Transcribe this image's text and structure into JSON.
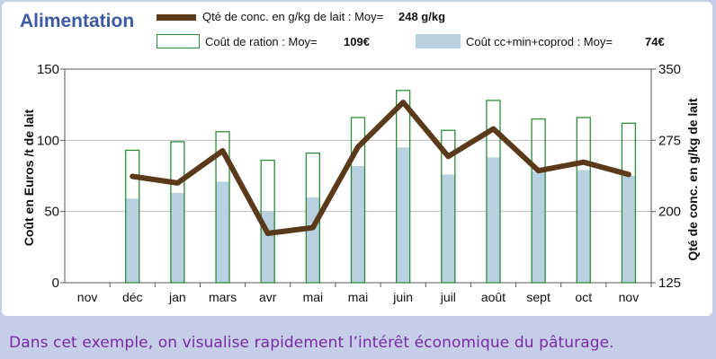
{
  "title": "Alimentation",
  "legend": {
    "line": {
      "label": "Qté de conc. en g/kg de lait : Moy=",
      "value": "248 g/kg"
    },
    "ration": {
      "label": "Coût de ration : Moy=",
      "value": "109€"
    },
    "cc": {
      "label": "Coût cc+min+coprod : Moy=",
      "value": "74€"
    }
  },
  "caption": "Dans cet exemple, on visualise rapidement l’intérêt économique du pâturage.",
  "colors": {
    "line": "#5a3a1a",
    "ration_border": "#2e8b3a",
    "cc_fill": "#b7d1e0",
    "grid": "#bbbbbb",
    "background": "#c5cde8",
    "title": "#3c5aa0",
    "caption": "#7a2aa6"
  },
  "chart_data": {
    "type": "bar",
    "categories": [
      "nov",
      "déc",
      "jan",
      "mars",
      "avr",
      "mai",
      "mai",
      "juin",
      "juil",
      "août",
      "sept",
      "oct",
      "nov"
    ],
    "series": [
      {
        "name": "Coût de ration",
        "axis": "left",
        "type": "bar-outline",
        "values": [
          null,
          93,
          99,
          106,
          86,
          91,
          116,
          135,
          107,
          128,
          115,
          116,
          112
        ]
      },
      {
        "name": "Coût cc+min+coprod",
        "axis": "left",
        "type": "bar",
        "values": [
          null,
          59,
          63,
          71,
          50,
          60,
          82,
          95,
          76,
          88,
          78,
          79,
          75
        ]
      },
      {
        "name": "Qté de conc. en g/kg de lait",
        "axis": "right",
        "type": "line",
        "values": [
          null,
          237,
          230,
          264,
          177,
          183,
          268,
          315,
          258,
          287,
          243,
          252,
          239
        ]
      }
    ],
    "ylabel": "Coût en Euros /t de lait",
    "ylabel_right": "Qté de conc. en g/kg de lait",
    "ylim": [
      0,
      150
    ],
    "yticks": [
      0,
      50,
      100,
      150
    ],
    "ylim_right": [
      125,
      350
    ],
    "yticks_right": [
      125,
      200,
      275,
      350
    ],
    "grid": true
  }
}
